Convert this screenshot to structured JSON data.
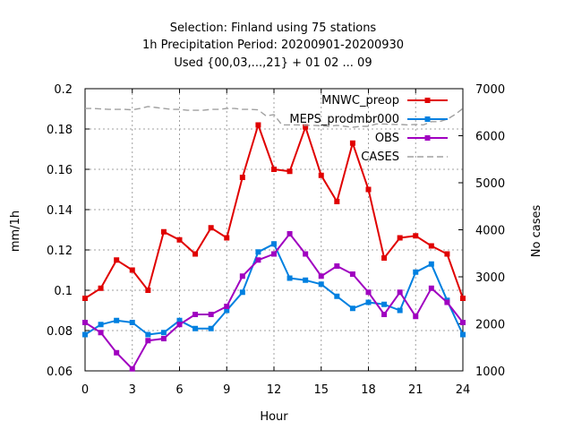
{
  "chart_data": {
    "type": "line",
    "title": [
      "Selection: Finland using    75 stations",
      "1h Precipitation   Period: 20200901-20200930",
      "Used {00,03,...,21} + 01 02 ... 09"
    ],
    "xlabel": "Hour",
    "ylabel": "mm/1h",
    "y2label": "No cases",
    "xlim": [
      0,
      24
    ],
    "ylim": [
      0.06,
      0.2
    ],
    "y2lim": [
      1000,
      7000
    ],
    "xticks": [
      0,
      3,
      6,
      9,
      12,
      15,
      18,
      21,
      24
    ],
    "yticks": [
      0.06,
      0.08,
      0.1,
      0.12,
      0.14,
      0.16,
      0.18,
      0.2
    ],
    "yticklabels": [
      "0.06",
      "0.08",
      "0.1",
      "0.12",
      "0.14",
      "0.16",
      "0.18",
      "0.2"
    ],
    "y2ticks": [
      1000,
      2000,
      3000,
      4000,
      5000,
      6000,
      7000
    ],
    "grid": true,
    "legend_position": "top-right",
    "x": [
      0,
      1,
      2,
      3,
      4,
      5,
      6,
      7,
      8,
      9,
      10,
      11,
      12,
      13,
      14,
      15,
      16,
      17,
      18,
      19,
      20,
      21,
      22,
      23,
      24
    ],
    "series": [
      {
        "name": "MNWC_preop",
        "color": "#e00000",
        "marker": "square",
        "values": [
          0.096,
          0.101,
          0.115,
          0.11,
          0.1,
          0.129,
          0.125,
          0.118,
          0.131,
          0.126,
          0.156,
          0.182,
          0.16,
          0.159,
          0.181,
          0.157,
          0.144,
          0.173,
          0.15,
          0.116,
          0.126,
          0.127,
          0.122,
          0.118,
          0.096
        ]
      },
      {
        "name": "MEPS_prodmbr000",
        "color": "#0080e0",
        "marker": "square",
        "values": [
          0.078,
          0.083,
          0.085,
          0.084,
          0.078,
          0.079,
          0.085,
          0.081,
          0.081,
          0.09,
          0.099,
          0.119,
          0.123,
          0.106,
          0.105,
          0.103,
          0.097,
          0.091,
          0.094,
          0.093,
          0.09,
          0.109,
          0.113,
          0.095,
          0.078
        ]
      },
      {
        "name": "OBS",
        "color": "#a000c0",
        "marker": "square",
        "values": [
          0.084,
          0.079,
          0.069,
          0.061,
          0.075,
          0.076,
          0.083,
          0.088,
          0.088,
          0.092,
          0.107,
          0.115,
          0.118,
          0.128,
          0.118,
          0.107,
          0.112,
          0.108,
          0.099,
          0.088,
          0.099,
          0.087,
          0.101,
          0.094,
          0.084
        ]
      },
      {
        "name": "CASES",
        "color": "#a0a0a0",
        "axis": "y2",
        "dashed": true,
        "x": [
          0,
          0.5,
          1,
          1.5,
          2,
          2.5,
          3,
          3.5,
          4,
          4.5,
          5,
          5.5,
          6,
          6.5,
          7,
          7.5,
          8,
          8.5,
          9,
          9.5,
          10,
          10.5,
          11,
          11.5,
          12,
          12.5,
          13,
          13.5,
          14,
          14.5,
          15,
          15.5,
          16,
          16.5,
          17,
          17.5,
          18,
          18.5,
          19,
          19.5,
          20,
          20.5,
          21,
          21.5,
          22,
          22.5,
          23,
          23.5,
          24
        ],
        "values": [
          6580,
          6580,
          6570,
          6560,
          6560,
          6560,
          6550,
          6580,
          6620,
          6600,
          6580,
          6560,
          6560,
          6540,
          6540,
          6540,
          6560,
          6560,
          6580,
          6580,
          6560,
          6560,
          6550,
          6420,
          6450,
          6230,
          6230,
          6230,
          6220,
          6220,
          6210,
          6200,
          6220,
          6200,
          6180,
          6200,
          6200,
          6250,
          6250,
          6240,
          6240,
          6230,
          6240,
          6230,
          6300,
          6300,
          6350,
          6450,
          6580
        ]
      }
    ]
  }
}
